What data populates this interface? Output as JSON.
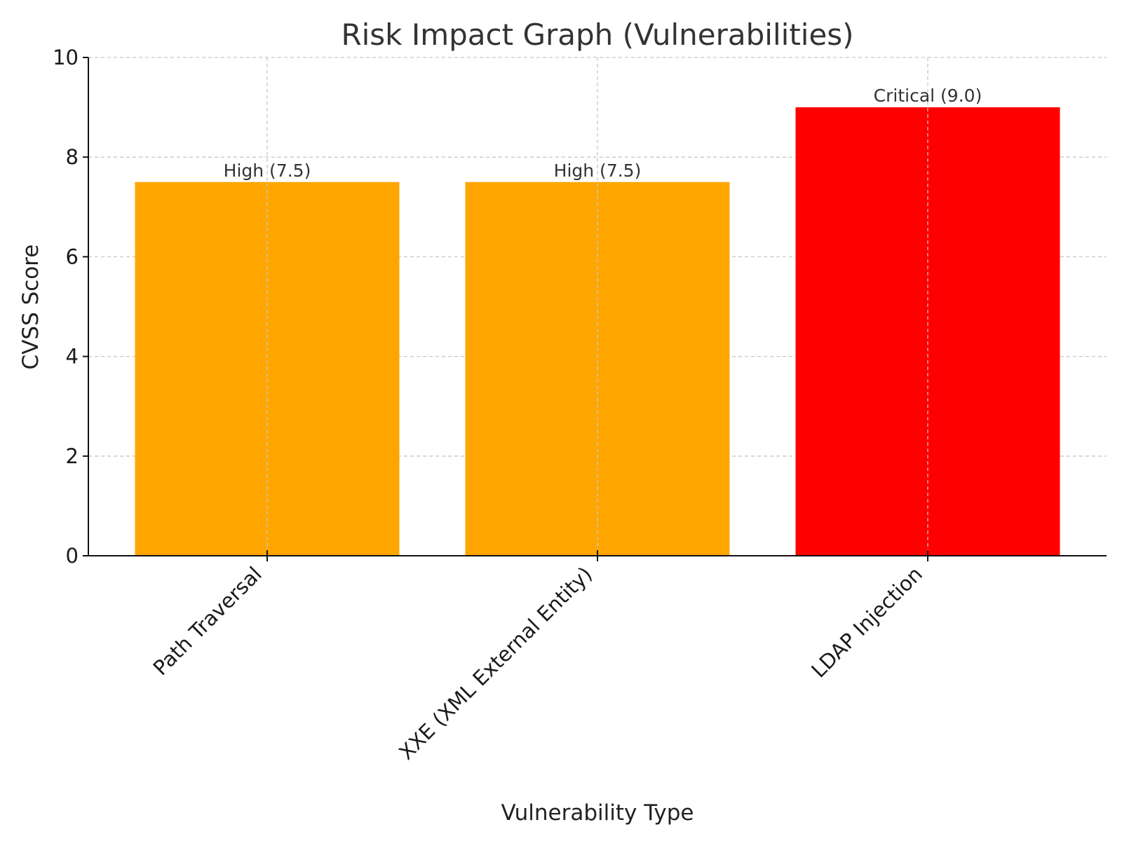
{
  "chart_data": {
    "type": "bar",
    "title": "Risk Impact Graph (Vulnerabilities)",
    "xlabel": "Vulnerability Type",
    "ylabel": "CVSS Score",
    "categories": [
      "Path Traversal",
      "XXE (XML External Entity)",
      "LDAP Injection"
    ],
    "values": [
      7.5,
      7.5,
      9.0
    ],
    "bar_colors": [
      "#FFA500",
      "#FFA500",
      "#FF0000"
    ],
    "data_labels": [
      "High (7.5)",
      "High (7.5)",
      "Critical (9.0)"
    ],
    "ylim": [
      0,
      10
    ],
    "yticks": [
      "0",
      "2",
      "4",
      "6",
      "8",
      "10"
    ],
    "grid": true,
    "legend": "none"
  }
}
